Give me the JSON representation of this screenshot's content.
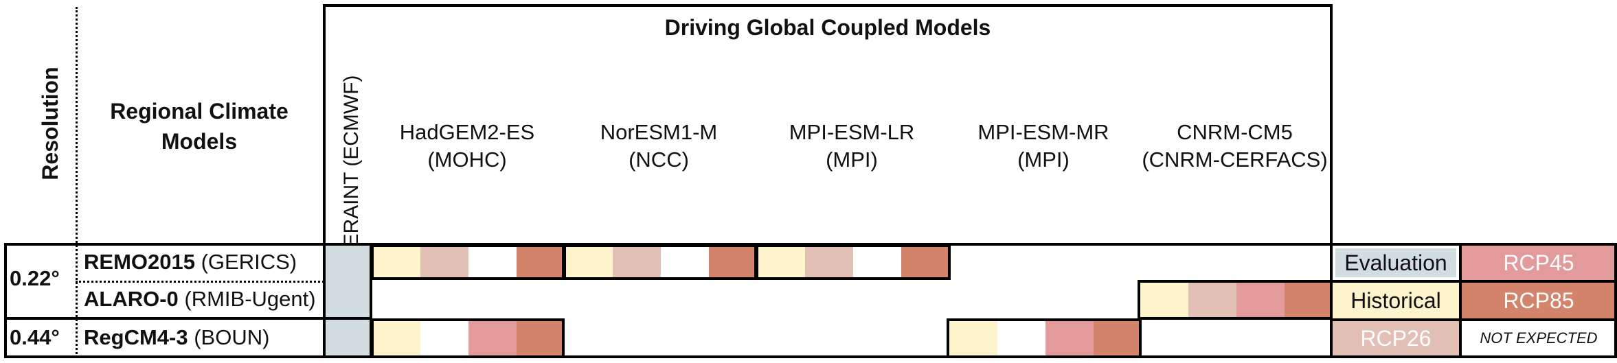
{
  "header": {
    "resolution": "Resolution",
    "rcm_line1": "Regional Climate",
    "rcm_line2": "Models",
    "driving": "Driving Global Coupled Models",
    "eraint": "ERAINT (ECMWF)",
    "gcms": [
      {
        "name": "HadGEM2-ES",
        "inst": "(MOHC)"
      },
      {
        "name": "NorESM1-M",
        "inst": "(NCC)"
      },
      {
        "name": "MPI-ESM-LR",
        "inst": "(MPI)"
      },
      {
        "name": "MPI-ESM-MR",
        "inst": "(MPI)"
      },
      {
        "name": "CNRM-CM5",
        "inst": "(CNRM-CERFACS)"
      }
    ]
  },
  "rows": [
    {
      "resolution": "0.22°",
      "model": "REMO2015",
      "inst": " (GERICS)"
    },
    {
      "model": "ALARO-0",
      "inst": " (RMIB-Ugent)"
    },
    {
      "resolution": "0.44°",
      "model": "RegCM4-3",
      "inst": " (BOUN)"
    }
  ],
  "legend": {
    "evaluation": "Evaluation",
    "rcp45": "RCP45",
    "historical": "Historical",
    "rcp85": "RCP85",
    "rcp26": "RCP26",
    "not_expected": "NOT EXPECTED"
  },
  "colors": {
    "evaluation": "#d2dde2",
    "historical": "#fdf3cc",
    "rcp26": "#e2c0b5",
    "rcp45": "#e29b9a",
    "rcp85": "#d3846b"
  }
}
